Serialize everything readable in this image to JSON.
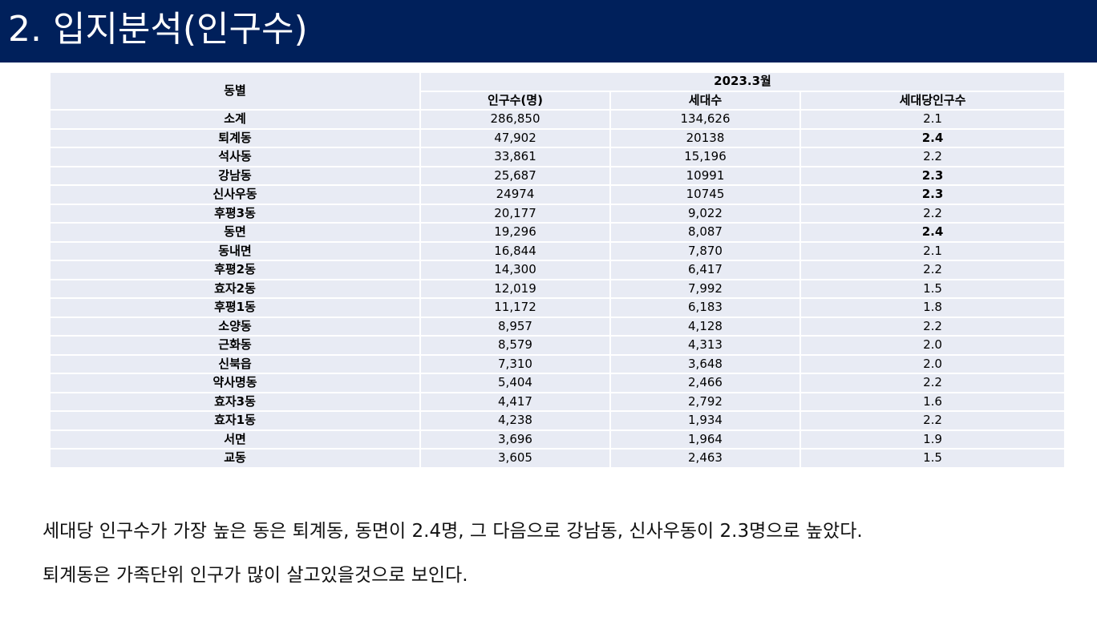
{
  "header": {
    "title": "2. 입지분석(인구수)",
    "background_color": "#00205b"
  },
  "table": {
    "col_name_header": "동별",
    "period_header": "2023.3월",
    "columns": [
      "인구수(명)",
      "세대수",
      "세대당인구수"
    ],
    "rows": [
      {
        "name": "소계",
        "population": "286,850",
        "households": "134,626",
        "per_household": "2.1",
        "highlight": false
      },
      {
        "name": "퇴계동",
        "population": "47,902",
        "households": "20138",
        "per_household": "2.4",
        "highlight": true
      },
      {
        "name": "석사동",
        "population": "33,861",
        "households": "15,196",
        "per_household": "2.2",
        "highlight": false
      },
      {
        "name": "강남동",
        "population": "25,687",
        "households": "10991",
        "per_household": "2.3",
        "highlight": true
      },
      {
        "name": "신사우동",
        "population": "24974",
        "households": "10745",
        "per_household": "2.3",
        "highlight": true
      },
      {
        "name": "후평3동",
        "population": "20,177",
        "households": "9,022",
        "per_household": "2.2",
        "highlight": false
      },
      {
        "name": "동면",
        "population": "19,296",
        "households": "8,087",
        "per_household": "2.4",
        "highlight": true
      },
      {
        "name": "동내면",
        "population": "16,844",
        "households": "7,870",
        "per_household": "2.1",
        "highlight": false
      },
      {
        "name": "후평2동",
        "population": "14,300",
        "households": "6,417",
        "per_household": "2.2",
        "highlight": false
      },
      {
        "name": "효자2동",
        "population": "12,019",
        "households": "7,992",
        "per_household": "1.5",
        "highlight": false
      },
      {
        "name": "후평1동",
        "population": "11,172",
        "households": "6,183",
        "per_household": "1.8",
        "highlight": false
      },
      {
        "name": "소양동",
        "population": "8,957",
        "households": "4,128",
        "per_household": "2.2",
        "highlight": false
      },
      {
        "name": "근화동",
        "population": "8,579",
        "households": "4,313",
        "per_household": "2.0",
        "highlight": false
      },
      {
        "name": "신북읍",
        "population": "7,310",
        "households": "3,648",
        "per_household": "2.0",
        "highlight": false
      },
      {
        "name": "약사명동",
        "population": "5,404",
        "households": "2,466",
        "per_household": "2.2",
        "highlight": false
      },
      {
        "name": "효자3동",
        "population": "4,417",
        "households": "2,792",
        "per_household": "1.6",
        "highlight": false
      },
      {
        "name": "효자1동",
        "population": "4,238",
        "households": "1,934",
        "per_household": "2.2",
        "highlight": false
      },
      {
        "name": "서면",
        "population": "3,696",
        "households": "1,964",
        "per_household": "1.9",
        "highlight": false
      },
      {
        "name": "교동",
        "population": "3,605",
        "households": "2,463",
        "per_household": "1.5",
        "highlight": false
      }
    ],
    "cell_color": "#e8ebf4"
  },
  "summary": {
    "line1": "세대당 인구수가 가장 높은 동은 퇴계동, 동면이 2.4명, 그 다음으로 강남동, 신사우동이 2.3명으로 높았다.",
    "line2": "퇴계동은 가족단위 인구가 많이 살고있을것으로 보인다."
  }
}
